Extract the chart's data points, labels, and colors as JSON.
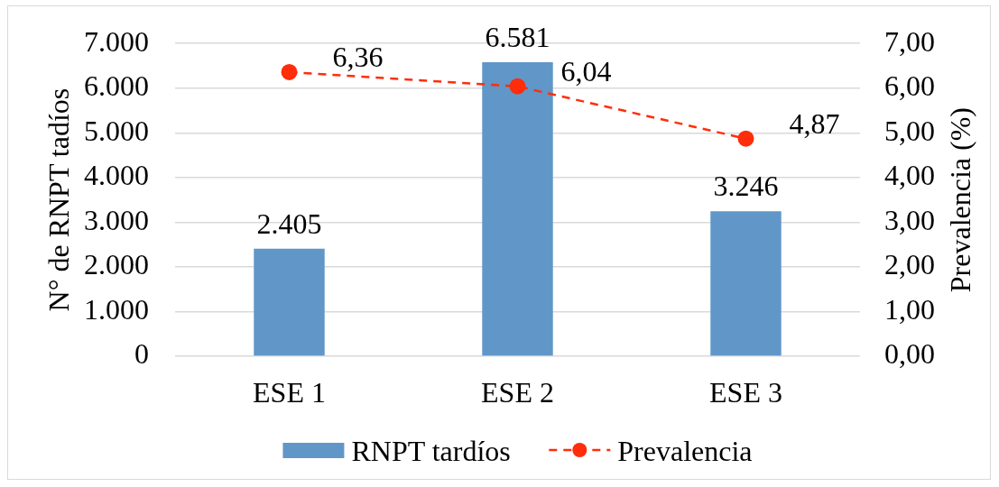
{
  "chart_data": {
    "type": "bar",
    "categories": [
      "ESE 1",
      "ESE 2",
      "ESE 3"
    ],
    "ylabel": "N° de RNPT tadíos",
    "y2label": "Prevalencia (%)",
    "ylim": [
      0,
      7000
    ],
    "yticks": [
      0,
      {
        "value": 1000,
        "label": "1.000"
      },
      {
        "value": 2000,
        "label": "2.000"
      },
      {
        "value": 3000,
        "label": "3.000"
      },
      {
        "value": 4000,
        "label": "4.000"
      },
      {
        "value": 5000,
        "label": "5.000"
      },
      {
        "value": 6000,
        "label": "6.000"
      },
      {
        "value": 7000,
        "label": "7.000"
      }
    ],
    "y2lim": [
      0,
      7
    ],
    "y2ticks": [
      {
        "value": 0,
        "label": "0,00"
      },
      {
        "value": 1,
        "label": "1,00"
      },
      {
        "value": 2,
        "label": "2,00"
      },
      {
        "value": 3,
        "label": "3,00"
      },
      {
        "value": 4,
        "label": "4,00"
      },
      {
        "value": 5,
        "label": "5,00"
      },
      {
        "value": 6,
        "label": "6,00"
      },
      {
        "value": 7,
        "label": "7,00"
      }
    ],
    "series": [
      {
        "name": "RNPT tardíos",
        "color": "#6196c8",
        "values": [
          2405,
          6581,
          3246
        ],
        "value_labels": [
          "2.405",
          "6.581",
          "3.246"
        ]
      },
      {
        "name": "Prevalencia",
        "type": "line",
        "axis": "y2",
        "color": "#ff2d0a",
        "values": [
          6.36,
          6.04,
          4.87
        ],
        "value_labels": [
          "6,36",
          "6,04",
          "4,87"
        ],
        "marker": "circle",
        "line_style": "dashed"
      }
    ],
    "grid": "y",
    "legend": "bottom"
  }
}
